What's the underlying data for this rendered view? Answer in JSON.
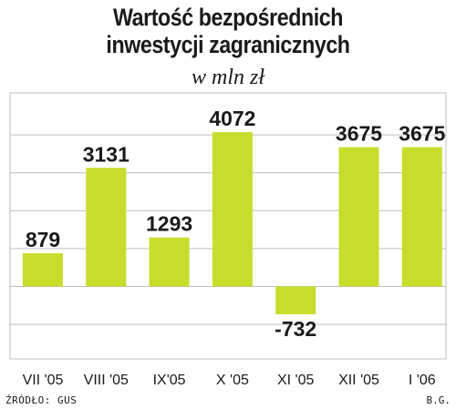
{
  "chart_data": {
    "type": "bar",
    "title_lines": [
      "Wartość bezpośrednich",
      "inwestycji zagranicznych"
    ],
    "subtitle": "w mln zł",
    "categories": [
      "VII '05",
      "VIII '05",
      "IX'05",
      "X '05",
      "XI '05",
      "XII '05",
      "I '06"
    ],
    "values": [
      879,
      3131,
      1293,
      4072,
      -732,
      3675,
      3675
    ],
    "value_labels": [
      "879",
      "3131",
      "1293",
      "4072",
      "-732",
      "3675",
      "3675"
    ],
    "ylim": [
      -2000,
      5000
    ],
    "grid": true,
    "bar_color": "#c8dc2c",
    "source": "ŹRÓDŁO: GUS",
    "author": "B.G."
  }
}
